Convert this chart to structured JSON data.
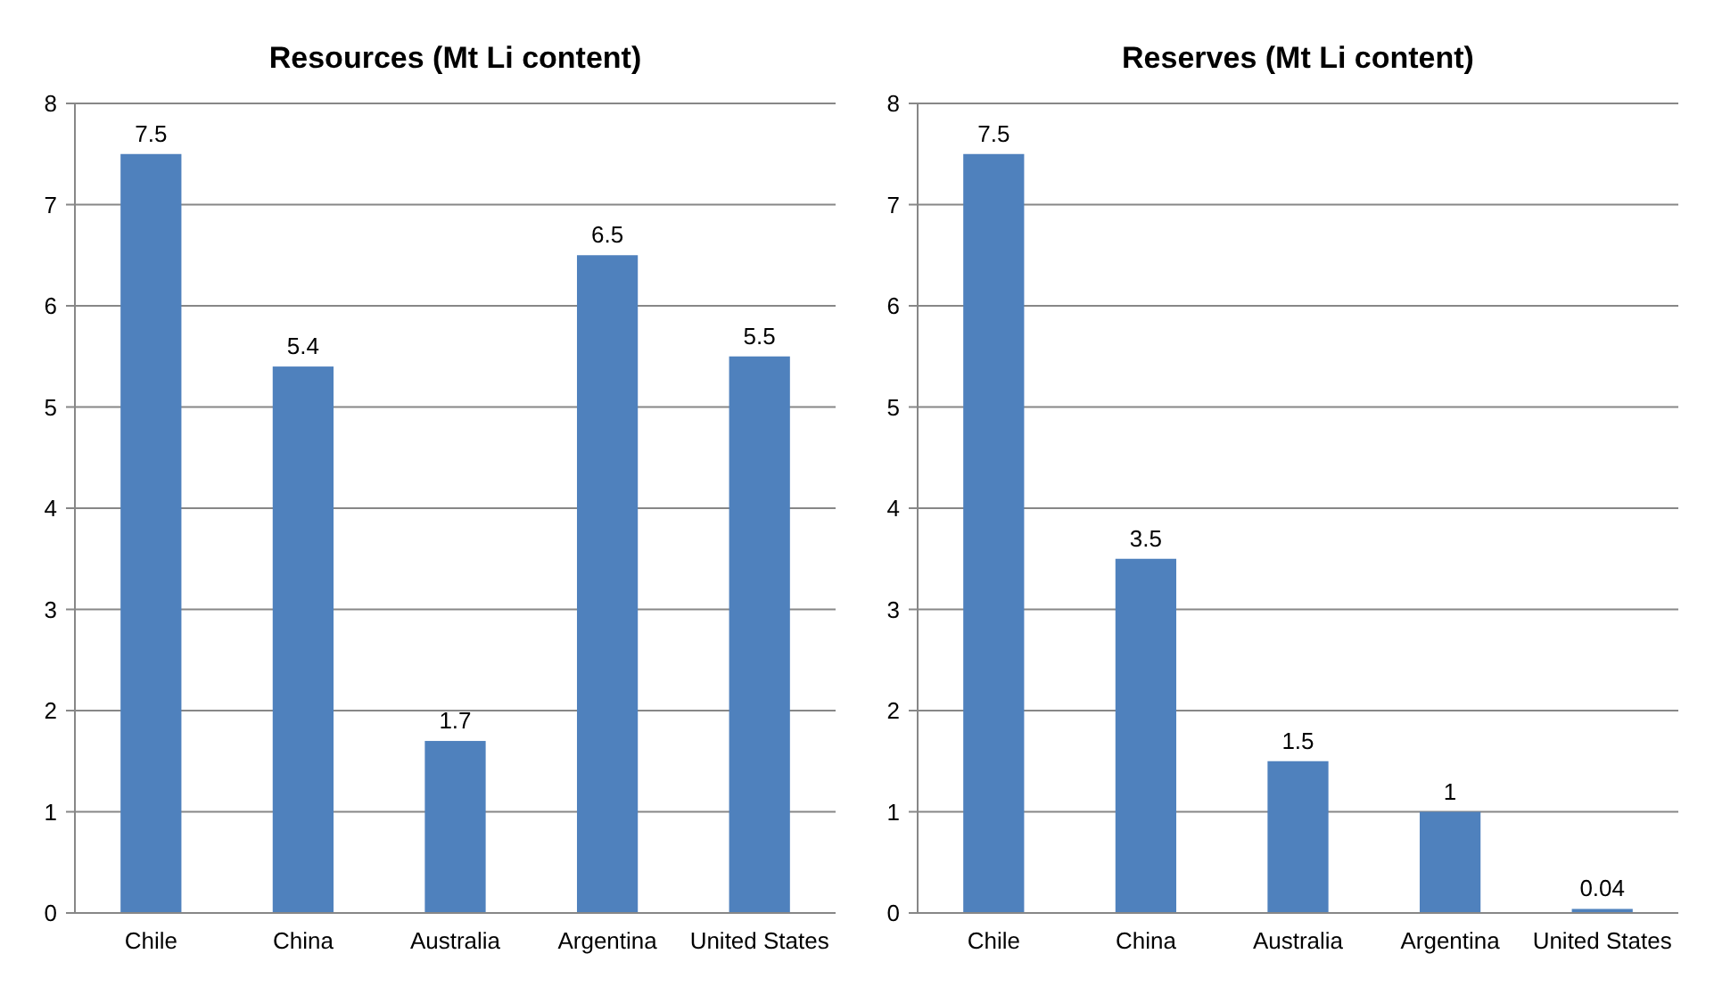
{
  "chart_data": [
    {
      "type": "bar",
      "title": "Resources (Mt Li content)",
      "categories": [
        "Chile",
        "China",
        "Australia",
        "Argentina",
        "United States"
      ],
      "values": [
        7.5,
        5.4,
        1.7,
        6.5,
        5.5
      ],
      "color": "#4f81bd",
      "ylim": [
        0,
        8
      ],
      "yticks": [
        0,
        1,
        2,
        3,
        4,
        5,
        6,
        7,
        8
      ],
      "grid": "y",
      "data_labels": true
    },
    {
      "type": "bar",
      "title": "Reserves (Mt Li content)",
      "categories": [
        "Chile",
        "China",
        "Australia",
        "Argentina",
        "United States"
      ],
      "values": [
        7.5,
        3.5,
        1.5,
        1,
        0.04
      ],
      "color": "#4f81bd",
      "ylim": [
        0,
        8
      ],
      "yticks": [
        0,
        1,
        2,
        3,
        4,
        5,
        6,
        7,
        8
      ],
      "grid": "y",
      "data_labels": true
    }
  ]
}
